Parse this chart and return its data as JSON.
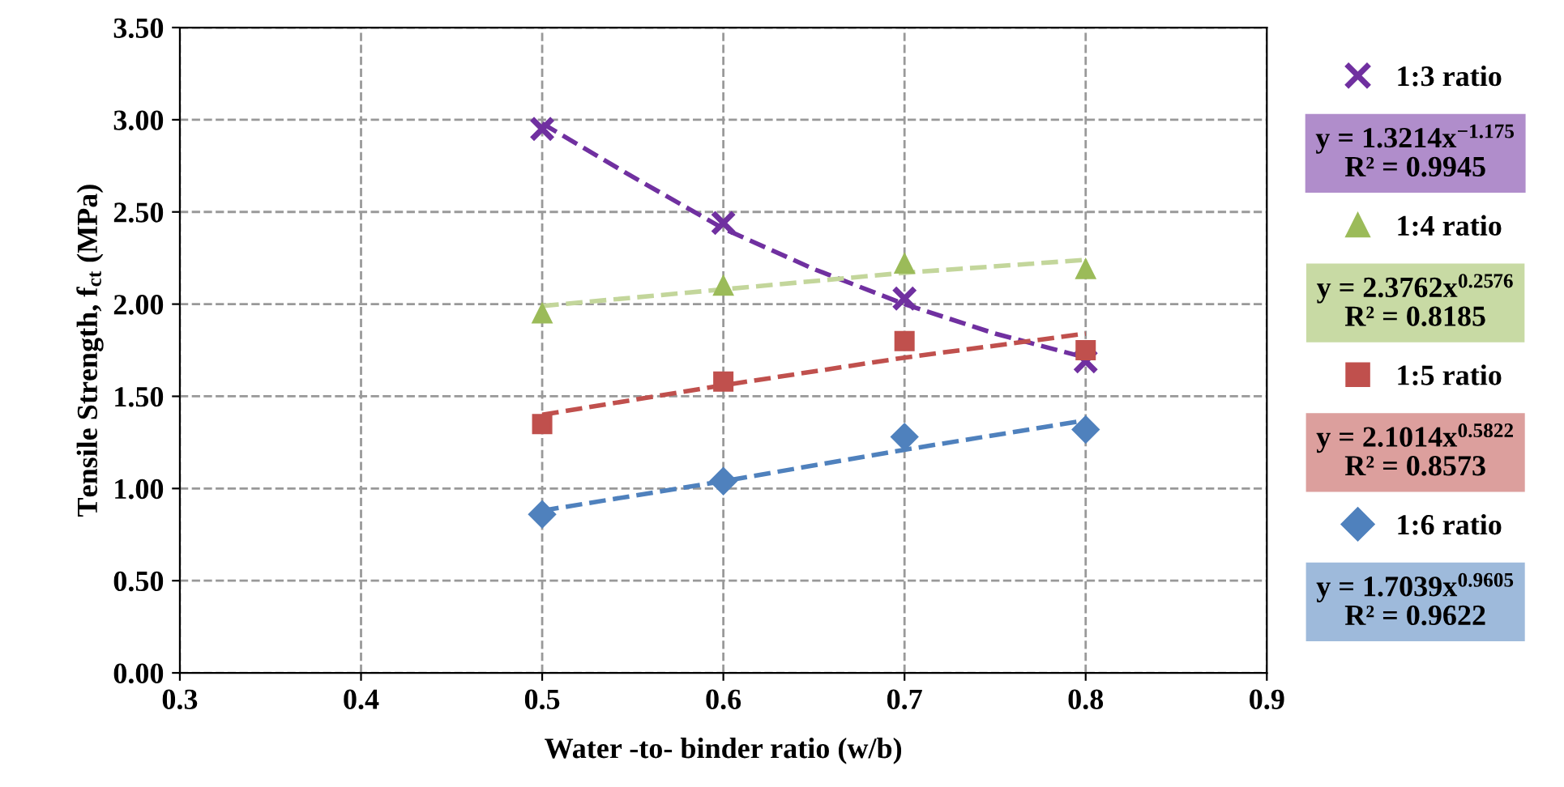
{
  "chart_data": {
    "type": "scatter",
    "xlabel": "Water -to- binder ratio (w/b)",
    "ylabel": "Tensile Strength, f$_{ct}$ (MPa)",
    "xlim": [
      0.3,
      0.9
    ],
    "xticks": [
      0.3,
      0.4,
      0.5,
      0.6,
      0.7,
      0.8,
      0.9
    ],
    "ylim": [
      0,
      3.5
    ],
    "yticks": [
      {
        "value": 0,
        "label": "0.00"
      },
      {
        "value": 0.5,
        "label": "0.50"
      },
      {
        "value": 1,
        "label": "1.00"
      },
      {
        "value": 1.5,
        "label": "1.50"
      },
      {
        "value": 2,
        "label": "2.00"
      },
      {
        "value": 2.5,
        "label": "2.50"
      },
      {
        "value": 3,
        "label": "3.00"
      },
      {
        "value": 3.5,
        "label": "3.50"
      }
    ],
    "grid": true,
    "legend": "right",
    "x": [
      0.5,
      0.6,
      0.7,
      0.8
    ],
    "series": [
      {
        "name": "1:3 ratio",
        "marker": "cross",
        "color": "#7030a0",
        "values": [
          2.95,
          2.44,
          2.03,
          1.69
        ]
      },
      {
        "name": "1:4 ratio",
        "marker": "triangle",
        "color": "#9bbb59",
        "values": [
          1.95,
          2.1,
          2.22,
          2.19
        ]
      },
      {
        "name": "1:5 ratio",
        "marker": "square",
        "color": "#c0504d",
        "values": [
          1.35,
          1.58,
          1.8,
          1.75
        ]
      },
      {
        "name": "1:6 ratio",
        "marker": "diamond",
        "color": "#4f81bd",
        "values": [
          0.86,
          1.04,
          1.28,
          1.32
        ]
      },
      {
        "type": "line",
        "line_style": "dashed",
        "color": "#7030a0",
        "x": [
          0.5,
          0.55,
          0.6,
          0.65,
          0.7,
          0.75,
          0.8
        ],
        "values": [
          2.98,
          2.69,
          2.41,
          2.19,
          2.0,
          1.84,
          1.71
        ]
      },
      {
        "type": "line",
        "line_style": "dashed",
        "color": "#c3d69b",
        "x": [
          0.5,
          0.6,
          0.7,
          0.8
        ],
        "values": [
          1.99,
          2.08,
          2.17,
          2.24
        ]
      },
      {
        "type": "line",
        "line_style": "dashed",
        "color": "#c0504d",
        "x": [
          0.5,
          0.6,
          0.7,
          0.8
        ],
        "values": [
          1.4,
          1.56,
          1.71,
          1.84
        ]
      },
      {
        "type": "line",
        "line_style": "dashed",
        "color": "#4f81bd",
        "x": [
          0.5,
          0.6,
          0.7,
          0.8
        ],
        "values": [
          0.88,
          1.04,
          1.21,
          1.37
        ]
      }
    ],
    "annotations": [
      "y = 1.3214x$^{−1.175}$\nR² = 0.9945",
      "y = 2.3762x$^{0.2576}$\nR² = 0.8185",
      "y = 2.1014x$^{0.5822}$\nR² = 0.8573",
      "y = 1.7039x$^{0.9605}$\nR² = 0.9622"
    ]
  }
}
